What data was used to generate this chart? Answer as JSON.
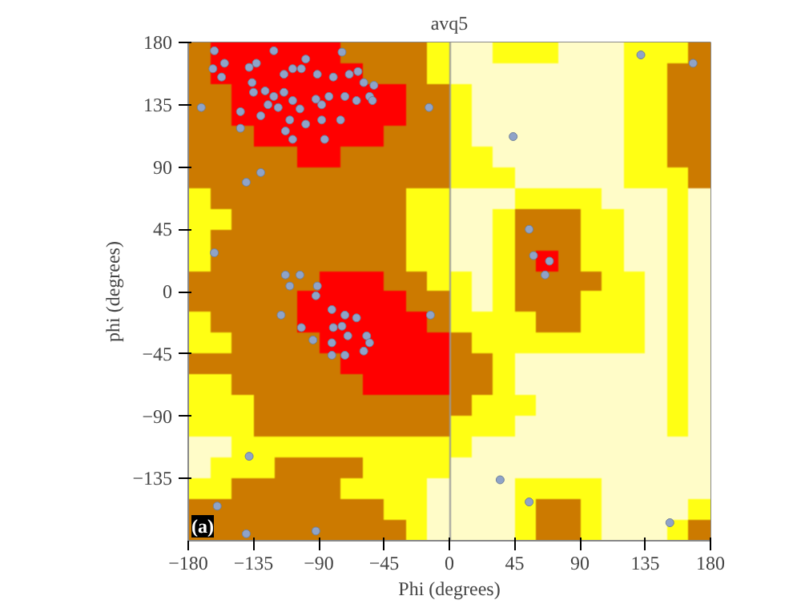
{
  "chart_data": {
    "type": "scatter",
    "title": "avq5",
    "xlabel": "Phi (degrees)",
    "ylabel": "phi (degrees)",
    "annotations": [
      "(a)"
    ],
    "xlim": [
      -180,
      180
    ],
    "ylim": [
      -180,
      180
    ],
    "xticks": [
      -180,
      -135,
      -90,
      -45,
      0,
      45,
      90,
      135,
      180
    ],
    "yticks": [
      -135,
      -90,
      -45,
      0,
      45,
      90,
      135,
      180
    ],
    "marker": "circle",
    "series": [
      {
        "color": "#8fa3c8",
        "x": [
          -162,
          -155,
          -163,
          -157,
          -138,
          -133,
          -121,
          -99,
          -108,
          -114,
          -102,
          -91,
          -80,
          -74,
          -69,
          -63,
          -59,
          -52,
          -55,
          -136,
          -135,
          -127,
          -121,
          -114,
          -125,
          -118,
          -108,
          -103,
          -92,
          -88,
          -83,
          -72,
          -64,
          -53,
          -144,
          -130,
          -110,
          -99,
          -88,
          -75,
          -144,
          -113,
          -108,
          -86,
          -130,
          -140,
          -113,
          -103,
          -110,
          -91,
          -92,
          -116,
          -81,
          -72,
          -64,
          -102,
          -80,
          -74,
          -94,
          -81,
          -70,
          -57,
          -55,
          -81,
          -72,
          -59,
          -138,
          -160,
          -140,
          -92,
          -162,
          -171,
          58,
          66,
          69,
          55,
          132,
          168,
          152,
          35,
          55,
          44,
          -14,
          -13
        ],
        "values": [
          174,
          165,
          161,
          155,
          162,
          165,
          174,
          168,
          161,
          157,
          161,
          157,
          155,
          173,
          157,
          159,
          151,
          149,
          141,
          151,
          144,
          145,
          141,
          144,
          135,
          133,
          138,
          132,
          139,
          135,
          141,
          141,
          138,
          138,
          130,
          127,
          124,
          121,
          124,
          124,
          118,
          116,
          110,
          110,
          86,
          79,
          12,
          12,
          4,
          4,
          -3,
          -17,
          -13,
          -17,
          -19,
          -26,
          -26,
          -25,
          -35,
          -37,
          -32,
          -32,
          -37,
          -46,
          -46,
          -43,
          -119,
          -155,
          -175,
          -173,
          28,
          133,
          26,
          12,
          22,
          45,
          171,
          165,
          -167,
          -136,
          -152,
          112,
          133,
          -17
        ]
      }
    ]
  }
}
